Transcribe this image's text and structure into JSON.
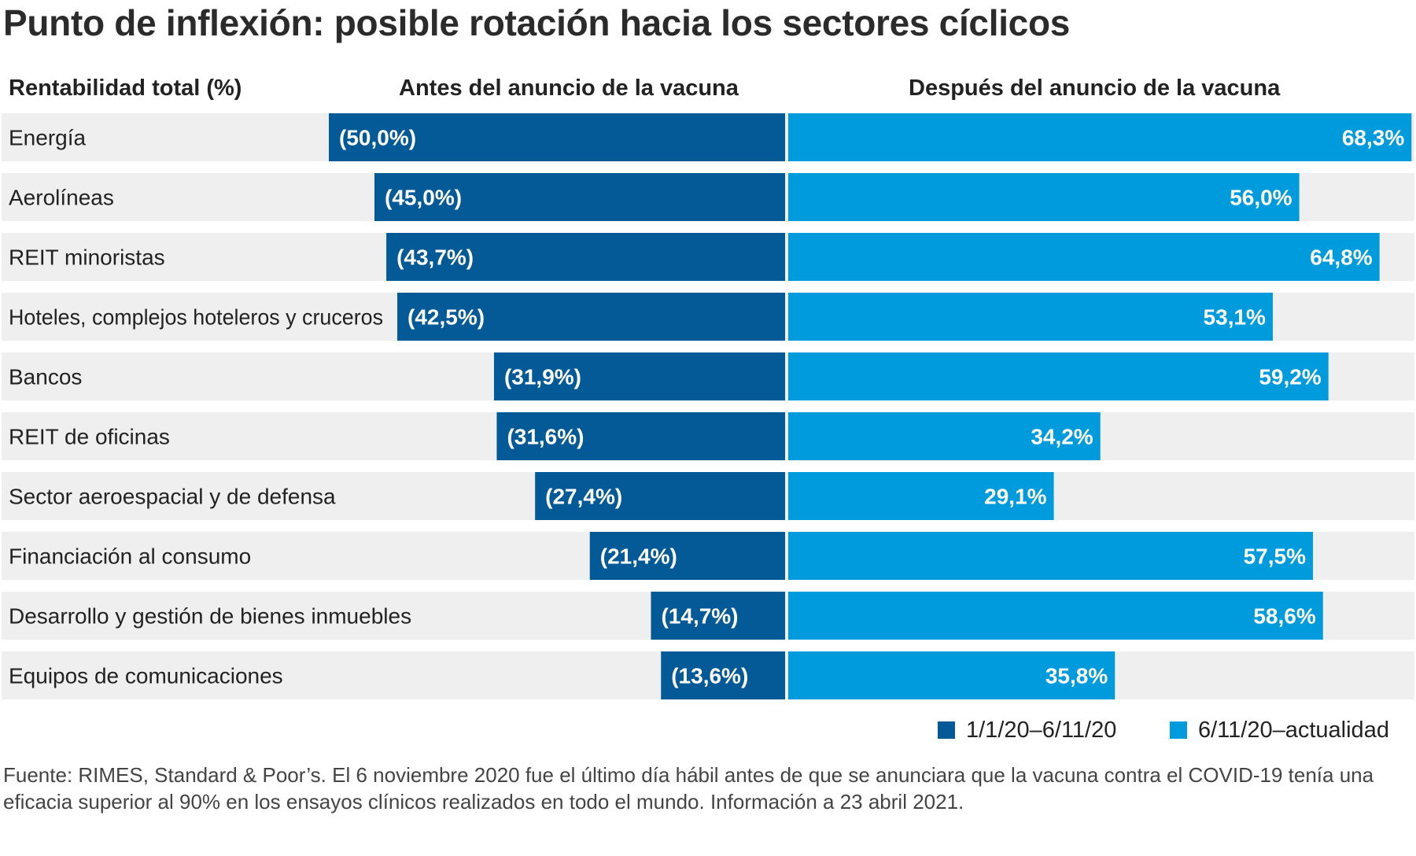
{
  "title": "Punto de inflexión: posible rotación hacia los sectores cíclicos",
  "headers": {
    "label": "Rentabilidad total (%)",
    "before": "Antes del anuncio de la vacuna",
    "after": "Después del anuncio de la vacuna"
  },
  "legend": {
    "before": "1/1/20–6/11/20",
    "after": "6/11/20–actualidad"
  },
  "colors": {
    "before": "#045a96",
    "after": "#009bdc",
    "row_bg": "#efefef"
  },
  "source": "Fuente: RIMES, Standard & Poor’s. El 6 noviembre 2020 fue el último día hábil antes de que se anunciara que la vacuna contra el COVID-19 tenía una eficacia superior al 90% en los ensayos clínicos realizados en todo el mundo. Información a 23 abril 2021.",
  "chart_data": {
    "type": "bar",
    "categories": [
      "Energía",
      "Aerolíneas",
      "REIT minoristas",
      "Hoteles, complejos hoteleros y cruceros",
      "Bancos",
      "REIT de oficinas",
      "Sector aeroespacial y de defensa",
      "Financiación al consumo",
      "Desarrollo y gestión de bienes inmuebles",
      "Equipos de comunicaciones"
    ],
    "series": [
      {
        "name": "1/1/20–6/11/20",
        "values": [
          -50.0,
          -45.0,
          -43.7,
          -42.5,
          -31.9,
          -31.6,
          -27.4,
          -21.4,
          -14.7,
          -13.6
        ],
        "labels": [
          "(50,0%)",
          "(45,0%)",
          "(43,7%)",
          "(42,5%)",
          "(31,9%)",
          "(31,6%)",
          "(27,4%)",
          "(21,4%)",
          "(14,7%)",
          "(13,6%)"
        ]
      },
      {
        "name": "6/11/20–actualidad",
        "values": [
          68.3,
          56.0,
          64.8,
          53.1,
          59.2,
          34.2,
          29.1,
          57.5,
          58.6,
          35.8
        ],
        "labels": [
          "68,3%",
          "56,0%",
          "64,8%",
          "53,1%",
          "59,2%",
          "34,2%",
          "29,1%",
          "57,5%",
          "58,6%",
          "35,8%"
        ]
      }
    ],
    "ylabel": "Rentabilidad total (%)"
  }
}
